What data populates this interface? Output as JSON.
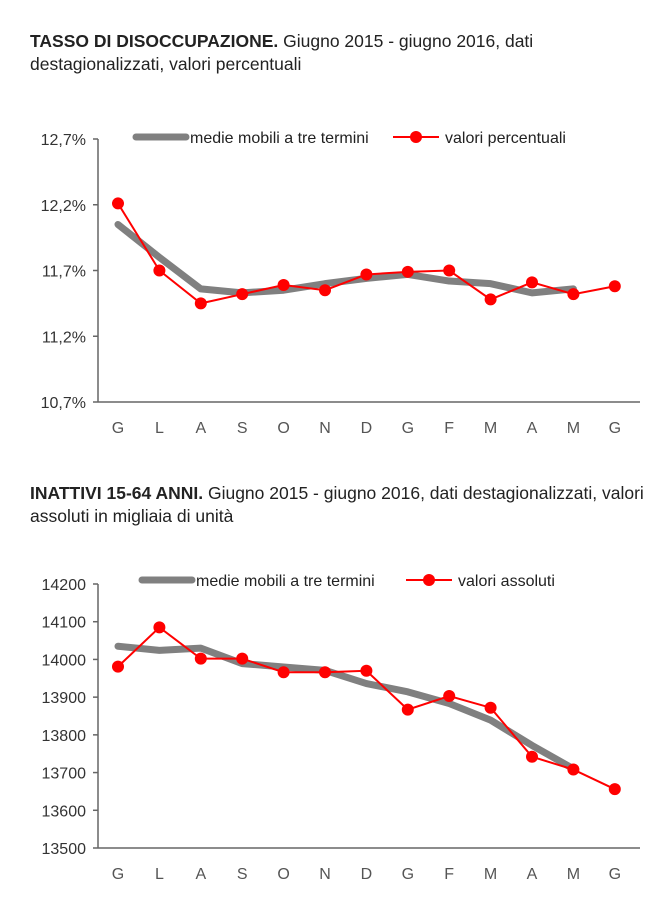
{
  "chart_data": [
    {
      "type": "line",
      "title_bold": "TASSO DI DISOCCUPAZIONE.",
      "title_rest": " Giugno 2015 - giugno 2016, dati destagionalizzati, valori percentuali",
      "categories": [
        "G",
        "L",
        "A",
        "S",
        "O",
        "N",
        "D",
        "G",
        "F",
        "M",
        "A",
        "M",
        "G"
      ],
      "ylim": [
        10.7,
        12.7
      ],
      "yticks": [
        10.7,
        11.2,
        11.7,
        12.2,
        12.7
      ],
      "ytick_labels": [
        "10,7%",
        "11,2%",
        "11,7%",
        "12,2%",
        "12,7%"
      ],
      "legend_placement": "top",
      "series": [
        {
          "name": "medie mobili a tre termini",
          "color": "#808080",
          "values": [
            12.05,
            11.8,
            11.56,
            11.53,
            11.55,
            11.6,
            11.64,
            11.67,
            11.62,
            11.6,
            11.53,
            11.56,
            null
          ]
        },
        {
          "name": "valori percentuali",
          "color": "#ff0000",
          "values": [
            12.21,
            11.7,
            11.45,
            11.52,
            11.59,
            11.55,
            11.67,
            11.69,
            11.7,
            11.48,
            11.61,
            11.52,
            11.58
          ]
        }
      ]
    },
    {
      "type": "line",
      "title_bold": "INATTIVI 15-64 ANNI.",
      "title_rest": " Giugno 2015 - giugno 2016, dati destagionalizzati, valori assoluti in migliaia di unità",
      "categories": [
        "G",
        "L",
        "A",
        "S",
        "O",
        "N",
        "D",
        "G",
        "F",
        "M",
        "A",
        "M",
        "G"
      ],
      "ylim": [
        13500,
        14200
      ],
      "yticks": [
        13500,
        13600,
        13700,
        13800,
        13900,
        14000,
        14100,
        14200
      ],
      "ytick_labels": [
        "13500",
        "13600",
        "13700",
        "13800",
        "13900",
        "14000",
        "14100",
        "14200"
      ],
      "legend_placement": "top",
      "series": [
        {
          "name": "medie mobili a tre termini",
          "color": "#808080",
          "values": [
            14035,
            14024,
            14030,
            13989,
            13980,
            13971,
            13936,
            13914,
            13883,
            13839,
            13772,
            13710,
            null
          ]
        },
        {
          "name": "valori assoluti",
          "color": "#ff0000",
          "values": [
            13981,
            14085,
            14002,
            14002,
            13966,
            13966,
            13970,
            13867,
            13903,
            13872,
            13742,
            13708,
            13656
          ]
        }
      ]
    }
  ]
}
